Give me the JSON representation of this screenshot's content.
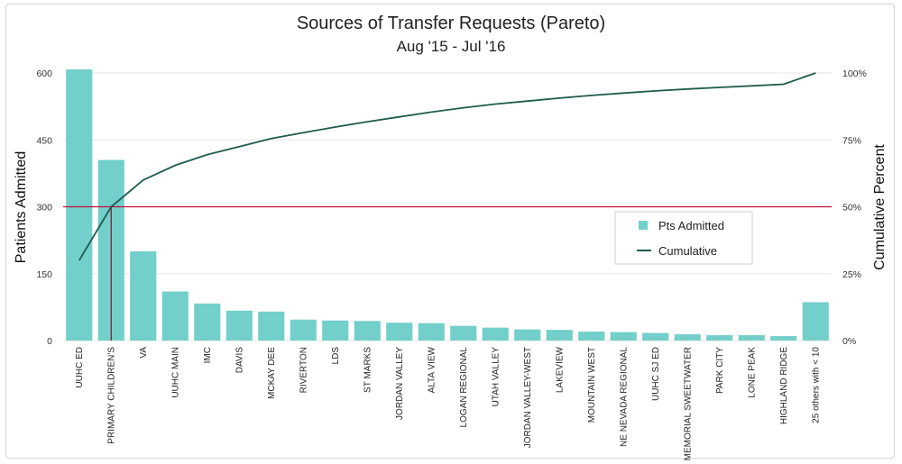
{
  "chart_data": {
    "type": "bar",
    "title": "Sources of Transfer Requests (Pareto)",
    "subtitle": "Aug '15 - Jul '16",
    "ylabel": "Patients Admitted",
    "y2label": "Cumulative Percent",
    "ylim": [
      0,
      600
    ],
    "y2lim": [
      0,
      100
    ],
    "yticks": [
      "0",
      "150",
      "300",
      "450",
      "600"
    ],
    "y2ticks": [
      "0%",
      "25%",
      "50%",
      "75%",
      "100%"
    ],
    "categories": [
      "UUHC ED",
      "PRIMARY CHILDREN'S",
      "VA",
      "UUHC MAIN",
      "IMC",
      "DAVIS",
      "MCKAY DEE",
      "RIVERTON",
      "LDS",
      "ST MARKS",
      "JORDAN VALLEY",
      "ALTA VIEW",
      "LOGAN REGIONAL",
      "UTAH VALLEY",
      "JORDAN VALLEY-WEST",
      "LAKEVIEW",
      "MOUNTAIN WEST",
      "NE NEVADA REGIONAL",
      "UUHC SJ ED",
      "MEMORIAL SWEETWATER",
      "PARK CITY",
      "LONE PEAK",
      "HIGHLAND RIDGE",
      "25 others with < 10"
    ],
    "series": [
      {
        "name": "Pts Admitted",
        "type": "bar",
        "color": "#72cfc9",
        "values": [
          608,
          405,
          200,
          110,
          83,
          67,
          65,
          47,
          45,
          44,
          40,
          39,
          33,
          29,
          25,
          24,
          20,
          19,
          17,
          14,
          12,
          12,
          10,
          86
        ]
      },
      {
        "name": "Cumulative",
        "type": "line",
        "color": "#1e5c50",
        "values": [
          30,
          50,
          60,
          65.5,
          69.5,
          72.5,
          75.5,
          77.7,
          79.8,
          81.8,
          83.6,
          85.4,
          87.0,
          88.4,
          89.5,
          90.6,
          91.6,
          92.5,
          93.3,
          94.0,
          94.6,
          95.2,
          95.8,
          100
        ]
      }
    ],
    "reference_line": {
      "value_percent": 50,
      "color": "#c40f3c"
    },
    "legend": {
      "placement": "right-center"
    },
    "grid": true
  }
}
